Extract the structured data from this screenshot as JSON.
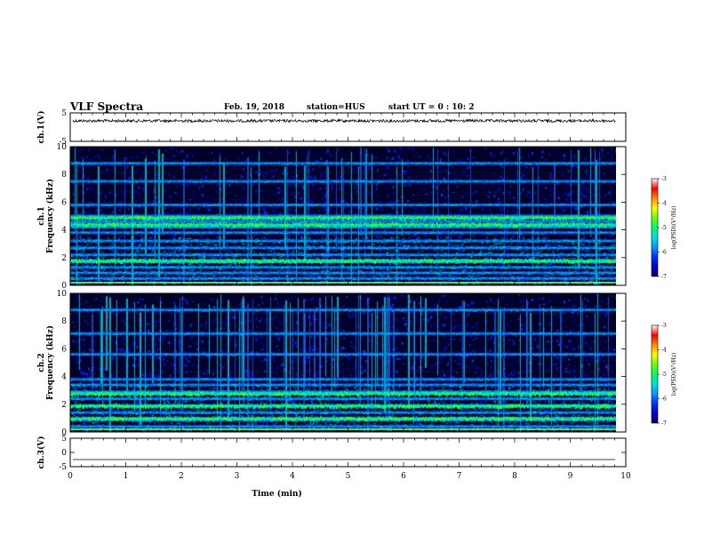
{
  "header": {
    "title": "VLF Spectra",
    "date": "Feb. 19, 2018",
    "station": "station=HUS",
    "start_ut": "start  UT =   0 : 10: 2"
  },
  "colors": {
    "spectrogram_background": "#00002a",
    "colormap": [
      "#000066",
      "#0000cc",
      "#0033ff",
      "#0099ff",
      "#00e0e0",
      "#00ff66",
      "#66ff00",
      "#ffff00",
      "#ff8800",
      "#ff0000",
      "#ffffff"
    ]
  },
  "chart_data": [
    {
      "type": "line",
      "name": "waveform-ch1",
      "ylabel": "ch.1(V)",
      "ylim": [
        -5,
        5
      ],
      "yticks": [
        "5",
        "-5"
      ],
      "xlim": [
        0,
        10
      ],
      "note_value": 2.2
    },
    {
      "type": "heatmap",
      "name": "spectrogram-ch1",
      "ylabel_channel": "ch.1",
      "ylabel": "Frequency (kHz)",
      "ylim": [
        0,
        10
      ],
      "yticks": [
        "0",
        "2",
        "4",
        "6",
        "8",
        "10"
      ],
      "xlim": [
        0,
        10
      ],
      "bands_khz": [
        0.5,
        0.9,
        1.3,
        1.7,
        2.2,
        2.7,
        3.2,
        3.8,
        4.2,
        4.6,
        5.0,
        5.8,
        7.5,
        8.8
      ],
      "strong_bands_khz": [
        1.8,
        4.9,
        4.4
      ],
      "colorbar": {
        "label": "log(PSD)(V²/Hz)",
        "ticks": [
          "-3",
          "-4",
          "-5",
          "-6",
          "-7"
        ],
        "range": [
          -7,
          -3
        ]
      }
    },
    {
      "type": "heatmap",
      "name": "spectrogram-ch2",
      "ylabel_channel": "ch.2",
      "ylabel": "Frequency (kHz)",
      "ylim": [
        0,
        10
      ],
      "yticks": [
        "0",
        "2",
        "4",
        "6",
        "8",
        "10"
      ],
      "xlim": [
        0,
        10
      ],
      "bands_khz": [
        0.4,
        0.9,
        1.4,
        1.9,
        2.4,
        2.9,
        3.4,
        3.8,
        5.6,
        7.1,
        8.8
      ],
      "strong_bands_khz": [
        1.0,
        1.9,
        2.8
      ],
      "colorbar": {
        "label": "log(PSD)(V²/Hz)",
        "ticks": [
          "-3",
          "-4",
          "-5",
          "-6",
          "-7"
        ],
        "range": [
          -7,
          -3
        ]
      }
    },
    {
      "type": "line",
      "name": "waveform-ch3",
      "ylabel": "ch.3(V)",
      "ylim": [
        -5,
        5
      ],
      "yticks": [
        "5",
        "0",
        "-5"
      ],
      "xlim": [
        0,
        10
      ],
      "note_value": -2.5
    }
  ],
  "x_axis": {
    "label": "Time (min)",
    "ticks": [
      "0",
      "1",
      "2",
      "3",
      "4",
      "5",
      "6",
      "7",
      "8",
      "9",
      "10"
    ],
    "data_end": 9.82
  }
}
